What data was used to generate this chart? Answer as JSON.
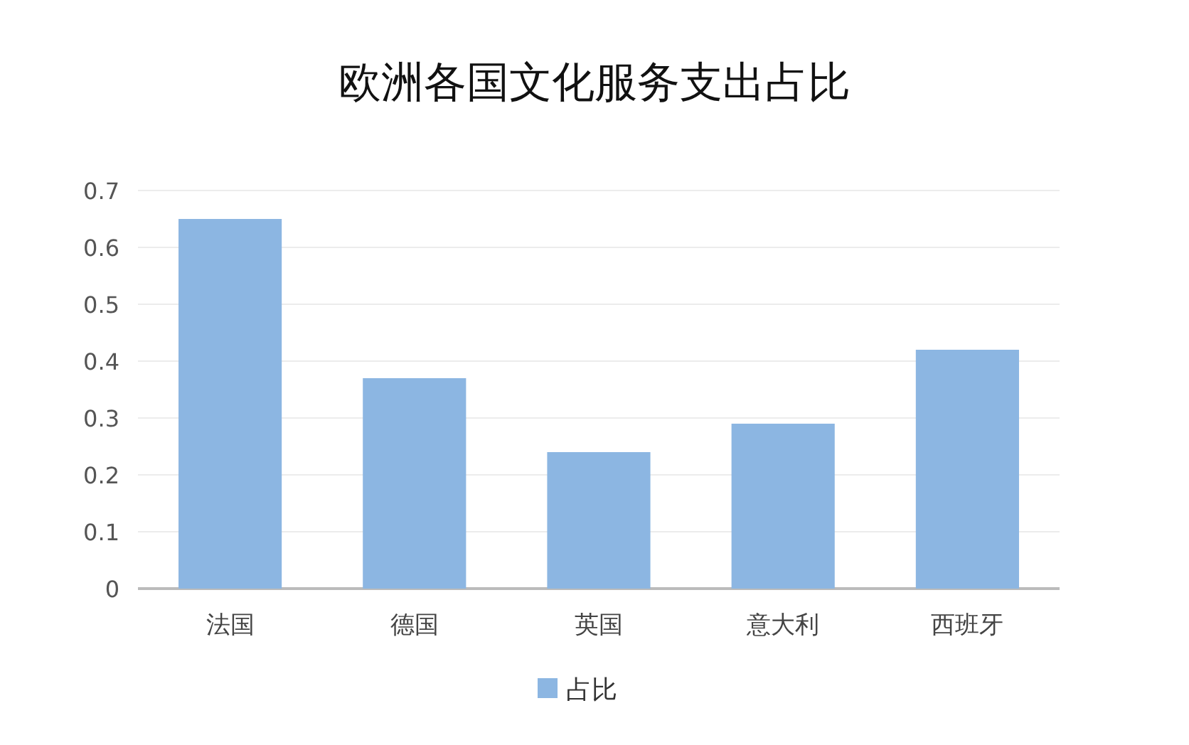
{
  "chart_data": {
    "type": "bar",
    "title": "欧洲各国文化服务支出占比",
    "categories": [
      "法国",
      "德国",
      "英国",
      "意大利",
      "西班牙"
    ],
    "series": [
      {
        "name": "占比",
        "color": "#8cb6e2",
        "values": [
          0.65,
          0.37,
          0.24,
          0.29,
          0.42
        ]
      }
    ],
    "ylim": [
      0,
      0.7
    ],
    "yticks": [
      0,
      0.1,
      0.2,
      0.3,
      0.4,
      0.5,
      0.6,
      0.7
    ],
    "grid": "y",
    "legend": "bottom"
  }
}
